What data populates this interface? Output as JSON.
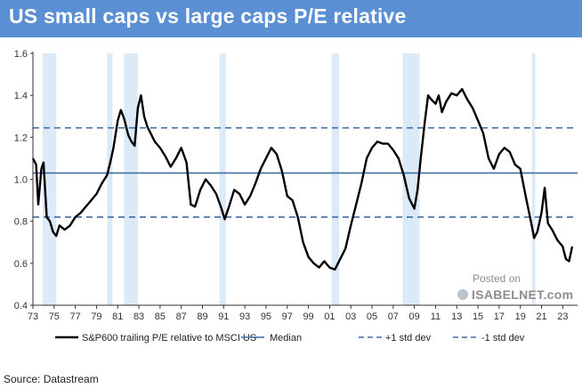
{
  "header": {
    "title": "US small caps vs large caps P/E relative"
  },
  "source": "Source: Datastream",
  "watermark": {
    "line1": "Posted on",
    "line2": "ISABELNET.com"
  },
  "colors": {
    "header_bg": "#5b8fd4",
    "series": "#000000",
    "reference": "#3f6fa6",
    "recession": "#dce9f7"
  },
  "chart_data": {
    "type": "line",
    "title": "US small caps vs large caps P/E relative",
    "xlabel": "",
    "ylabel": "",
    "xlim": [
      1973,
      2024.4
    ],
    "ylim": [
      0.4,
      1.6
    ],
    "x_ticks": [
      "73",
      "75",
      "77",
      "79",
      "81",
      "83",
      "85",
      "87",
      "89",
      "91",
      "93",
      "95",
      "97",
      "99",
      "01",
      "03",
      "05",
      "07",
      "09",
      "11",
      "13",
      "15",
      "17",
      "19",
      "21",
      "23"
    ],
    "y_ticks": [
      "0.4",
      "0.6",
      "0.8",
      "1.0",
      "1.2",
      "1.4",
      "1.6"
    ],
    "reference_lines": [
      {
        "name": "Median",
        "value": 1.03,
        "style": "solid"
      },
      {
        "name": "+1 std dev",
        "value": 1.245,
        "style": "dashed"
      },
      {
        "name": "-1 std dev",
        "value": 0.82,
        "style": "dashed"
      }
    ],
    "recession_bands": [
      [
        1973.9,
        1975.2
      ],
      [
        1980.0,
        1980.5
      ],
      [
        1981.6,
        1982.9
      ],
      [
        1990.6,
        1991.2
      ],
      [
        2001.2,
        2001.9
      ],
      [
        2007.9,
        2009.5
      ],
      [
        2020.1,
        2020.4
      ]
    ],
    "series": [
      {
        "name": "S&P600 trailing P/E relative to MSCI US",
        "x": [
          1973.0,
          1973.3,
          1973.5,
          1973.8,
          1974.0,
          1974.3,
          1974.6,
          1974.9,
          1975.2,
          1975.5,
          1976.0,
          1976.5,
          1977.0,
          1977.5,
          1978.0,
          1978.5,
          1979.0,
          1979.5,
          1980.0,
          1980.3,
          1980.6,
          1981.0,
          1981.3,
          1981.6,
          1982.0,
          1982.3,
          1982.6,
          1982.9,
          1983.2,
          1983.5,
          1983.8,
          1984.1,
          1984.5,
          1985.0,
          1985.5,
          1986.0,
          1986.5,
          1987.0,
          1987.5,
          1987.9,
          1988.3,
          1988.8,
          1989.3,
          1989.8,
          1990.3,
          1990.8,
          1991.1,
          1991.5,
          1992.0,
          1992.5,
          1993.0,
          1993.5,
          1994.0,
          1994.5,
          1995.0,
          1995.5,
          1996.0,
          1996.5,
          1997.0,
          1997.5,
          1998.0,
          1998.5,
          1999.0,
          1999.5,
          2000.0,
          2000.5,
          2001.0,
          2001.5,
          2002.0,
          2002.5,
          2003.0,
          2003.5,
          2004.0,
          2004.5,
          2005.0,
          2005.5,
          2006.0,
          2006.5,
          2007.0,
          2007.5,
          2008.0,
          2008.5,
          2009.0,
          2009.3,
          2009.6,
          2010.0,
          2010.3,
          2010.6,
          2011.0,
          2011.3,
          2011.6,
          2012.0,
          2012.5,
          2013.0,
          2013.5,
          2014.0,
          2014.5,
          2015.0,
          2015.5,
          2016.0,
          2016.5,
          2017.0,
          2017.5,
          2018.0,
          2018.5,
          2019.0,
          2019.5,
          2020.0,
          2020.3,
          2020.6,
          2021.0,
          2021.3,
          2021.6,
          2022.0,
          2022.5,
          2023.0,
          2023.3,
          2023.6,
          2023.9
        ],
        "values": [
          1.1,
          1.07,
          0.88,
          1.05,
          1.08,
          0.82,
          0.8,
          0.75,
          0.73,
          0.78,
          0.76,
          0.78,
          0.82,
          0.84,
          0.87,
          0.9,
          0.93,
          0.98,
          1.02,
          1.08,
          1.15,
          1.28,
          1.33,
          1.29,
          1.21,
          1.18,
          1.16,
          1.34,
          1.4,
          1.3,
          1.25,
          1.22,
          1.18,
          1.15,
          1.11,
          1.06,
          1.1,
          1.15,
          1.08,
          0.88,
          0.87,
          0.95,
          1.0,
          0.97,
          0.93,
          0.86,
          0.81,
          0.87,
          0.95,
          0.93,
          0.88,
          0.92,
          0.98,
          1.05,
          1.1,
          1.15,
          1.12,
          1.04,
          0.92,
          0.9,
          0.82,
          0.7,
          0.63,
          0.6,
          0.58,
          0.61,
          0.58,
          0.57,
          0.62,
          0.67,
          0.78,
          0.88,
          0.98,
          1.1,
          1.15,
          1.18,
          1.17,
          1.17,
          1.14,
          1.1,
          1.02,
          0.91,
          0.86,
          0.95,
          1.1,
          1.28,
          1.4,
          1.38,
          1.36,
          1.4,
          1.32,
          1.37,
          1.41,
          1.4,
          1.43,
          1.38,
          1.34,
          1.28,
          1.22,
          1.1,
          1.05,
          1.12,
          1.15,
          1.13,
          1.07,
          1.05,
          0.92,
          0.8,
          0.72,
          0.75,
          0.84,
          0.96,
          0.79,
          0.76,
          0.71,
          0.68,
          0.62,
          0.61,
          0.68
        ]
      }
    ],
    "legend": [
      {
        "label": "S&P600 trailing P/E relative to MSCI US",
        "style": "thick-solid"
      },
      {
        "label": "Median",
        "style": "solid"
      },
      {
        "label": "+1 std dev",
        "style": "dashed"
      },
      {
        "label": "-1 std dev",
        "style": "dashed"
      }
    ],
    "legend_position": "bottom"
  }
}
